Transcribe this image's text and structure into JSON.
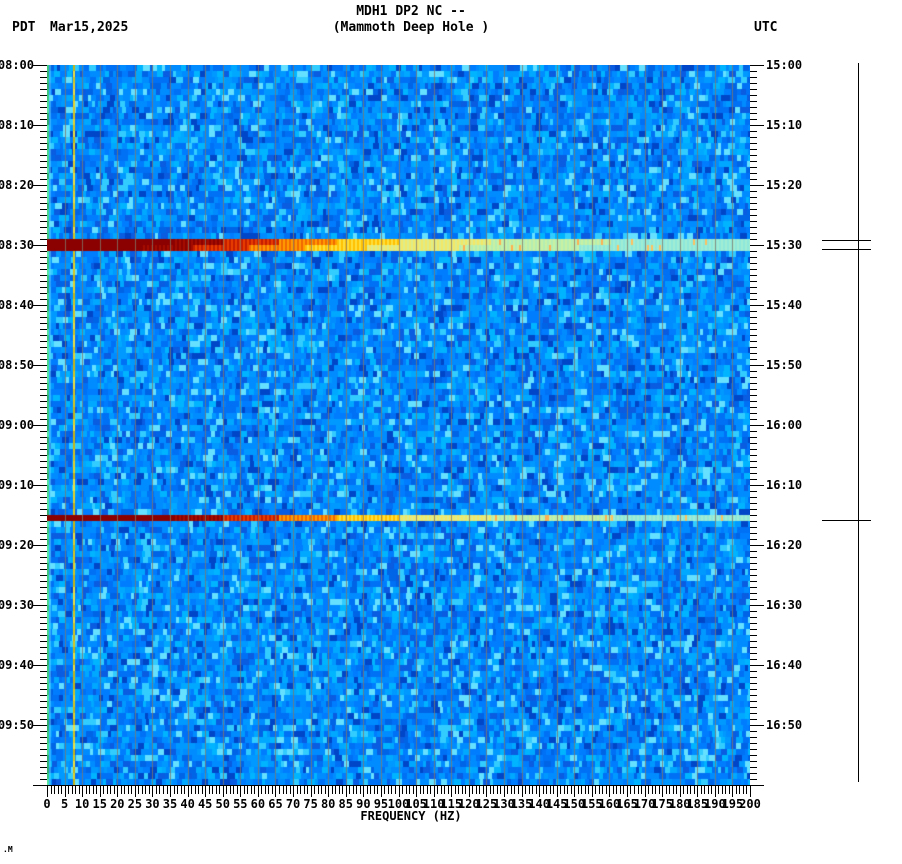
{
  "header": {
    "title_line1": "MDH1 DP2 NC --",
    "title_line2": "(Mammoth Deep Hole )",
    "left_timezone": "PDT",
    "date": "Mar15,2025",
    "right_timezone": "UTC"
  },
  "chart_data": {
    "type": "heatmap",
    "subtype": "seismic-spectrogram",
    "title": "MDH1 DP2 NC -- (Mammoth Deep Hole )",
    "xlabel": "FREQUENCY (HZ)",
    "x_axis": {
      "min_hz": 0,
      "max_hz": 200,
      "major_tick_hz": 5,
      "minor_tick_hz": 1,
      "tick_labels": [
        "0",
        "5",
        "10",
        "15",
        "20",
        "25",
        "30",
        "35",
        "40",
        "45",
        "50",
        "55",
        "60",
        "65",
        "70",
        "75",
        "80",
        "85",
        "90",
        "95",
        "100",
        "105",
        "110",
        "115",
        "120",
        "125",
        "130",
        "135",
        "140",
        "145",
        "150",
        "155",
        "160",
        "165",
        "170",
        "175",
        "180",
        "185",
        "190",
        "195",
        "200"
      ]
    },
    "left_time_axis": {
      "timezone": "PDT",
      "start": "08:00",
      "minutes_span": 120,
      "major_tick_min": 10,
      "minor_tick_min": 1,
      "labels": [
        "08:00",
        "08:10",
        "08:20",
        "08:30",
        "08:40",
        "08:50",
        "09:00",
        "09:10",
        "09:20",
        "09:30",
        "09:40",
        "09:50"
      ]
    },
    "right_time_axis": {
      "timezone": "UTC",
      "start": "15:00",
      "minutes_span": 120,
      "major_tick_min": 10,
      "minor_tick_min": 1,
      "labels": [
        "15:00",
        "15:10",
        "15:20",
        "15:30",
        "15:40",
        "15:50",
        "16:00",
        "16:10",
        "16:20",
        "16:30",
        "16:40",
        "16:50"
      ]
    },
    "background_noise_colors": [
      "#0064e6",
      "#0070f5",
      "#007dff",
      "#008cff",
      "#0099ff",
      "#0070f5",
      "#008cff",
      "#00a8ff",
      "#0a5ce0",
      "#00b4ff",
      "#007dff",
      "#33ccff",
      "#0046c8",
      "#008cff",
      "#0099ff",
      "#66e0ff"
    ],
    "grid_line_color": "#80786c",
    "spectral_lines": [
      {
        "frequency_hz": 7.3,
        "colors": [
          "#d8c41e",
          "#e6d22a",
          "#c8b414",
          "#f0e040"
        ]
      },
      {
        "frequency_hz": 0.4,
        "colors": [
          "#3cc87a",
          "#49d98c",
          "#2fae6b",
          "#55e6a0"
        ]
      }
    ],
    "events": [
      {
        "time_local": "08:29",
        "time_utc": "15:29",
        "start_min": 29,
        "duration_min": 2,
        "extent_hz": [
          0,
          200
        ],
        "peak_color": "#8b0000"
      },
      {
        "time_local": "09:15",
        "time_utc": "16:15",
        "start_min": 75,
        "duration_min": 1,
        "extent_hz": [
          0,
          200
        ],
        "peak_color": "#8b0000"
      }
    ]
  },
  "amplitude_bar": {
    "marks_min_from_start": [
      29.2,
      30.7,
      75.8
    ]
  },
  "footer": {
    "artifact": ".M"
  }
}
